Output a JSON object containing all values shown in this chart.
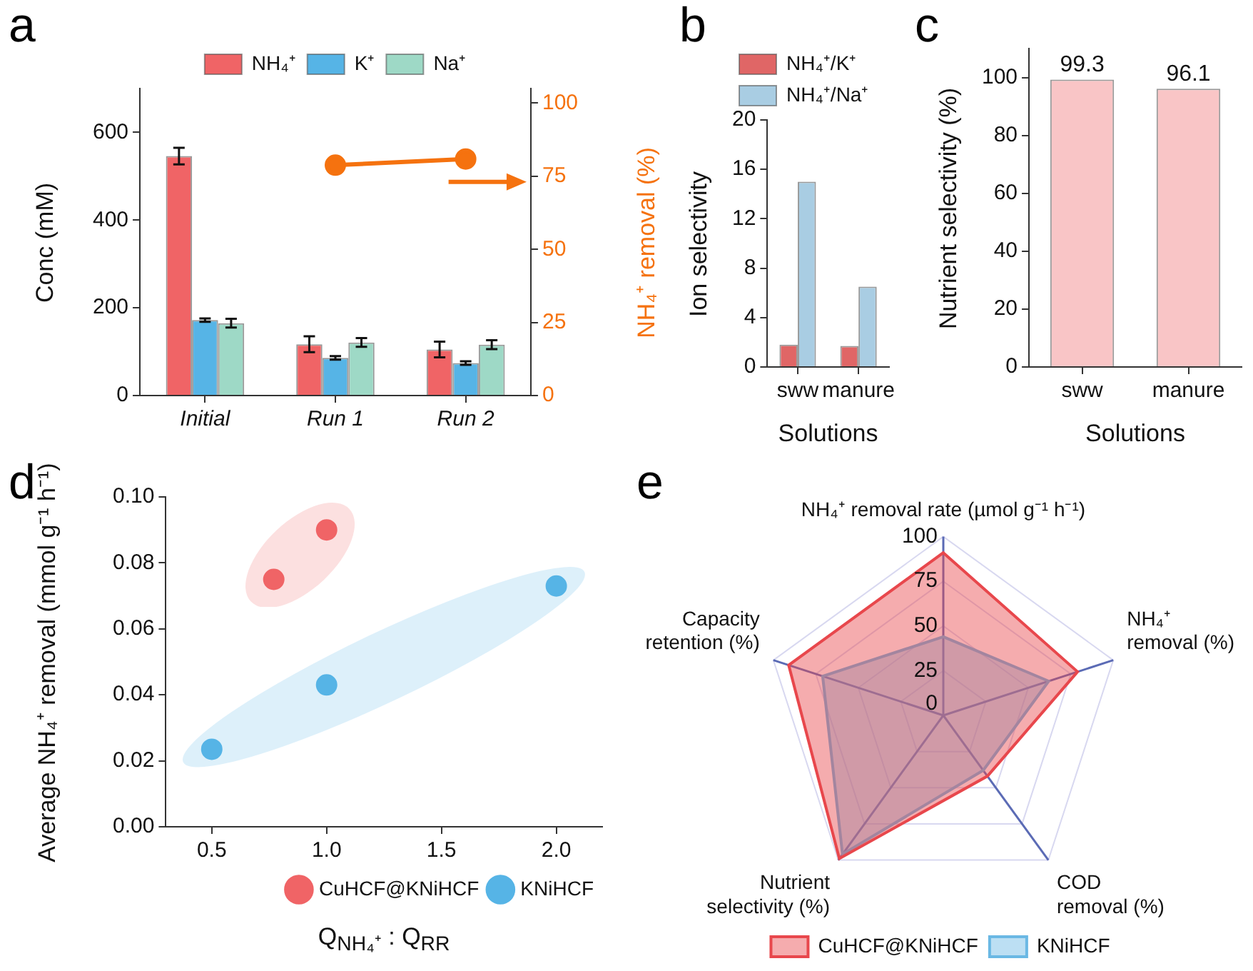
{
  "chart_data": [
    {
      "type": "bar",
      "annotations": [
        "a"
      ],
      "ylabel": "Conc (mM)",
      "y2label": "NH₄⁺ removal (%)",
      "categories": [
        "Initial",
        "Run 1",
        "Run 2"
      ],
      "series": [
        {
          "name": "NH₄⁺",
          "color": "#f06466",
          "values": [
            546,
            117,
            105
          ],
          "errors": [
            19,
            18,
            18
          ]
        },
        {
          "name": "K⁺",
          "color": "#56b4e6",
          "values": [
            172,
            86,
            74
          ],
          "errors": [
            4,
            4,
            4
          ]
        },
        {
          "name": "Na⁺",
          "color": "#9ed9c6",
          "values": [
            165,
            121,
            116
          ],
          "errors": [
            10,
            10,
            10
          ]
        },
        {
          "type": "line",
          "axis": "y2",
          "color": "#f5720f",
          "values": [
            null,
            78.8,
            80.9
          ]
        }
      ],
      "ylim": [
        0,
        700
      ],
      "yticks": [
        0,
        200,
        400,
        600
      ],
      "y2lim": [
        0,
        105
      ],
      "y2ticks": [
        0,
        25,
        50,
        75,
        100
      ],
      "legend": "top",
      "marker": "circle",
      "grid": false
    },
    {
      "type": "bar",
      "annotations": [
        "b"
      ],
      "ylabel": "Ion selectivity",
      "xlabel": "Solutions",
      "categories": [
        "sww",
        "manure"
      ],
      "series": [
        {
          "name": "NH₄⁺/K⁺",
          "color": "#e06666",
          "values": [
            1.8,
            1.7
          ]
        },
        {
          "name": "NH₄⁺/Na⁺",
          "color": "#a9cde3",
          "values": [
            15.0,
            6.5
          ]
        }
      ],
      "ylim": [
        0,
        20
      ],
      "yticks": [
        0,
        4,
        8,
        12,
        16,
        20
      ],
      "legend": "top left",
      "grid": false
    },
    {
      "type": "bar",
      "annotations": [
        "c"
      ],
      "ylabel": "Nutrient selectivity (%)",
      "xlabel": "Solutions",
      "categories": [
        "sww",
        "manure"
      ],
      "values": [
        99.3,
        96.1
      ],
      "color": "#f9c5c6",
      "data_labels": true,
      "ylim": [
        0,
        110
      ],
      "yticks": [
        0,
        20,
        40,
        60,
        80,
        100
      ],
      "grid": false
    },
    {
      "type": "scatter",
      "annotations": [
        "d"
      ],
      "xlabel": "Q$_{NH₄⁺}$ : Q$_{RR}$",
      "ylabel": "Average NH₄⁺ removal (mmol g⁻¹ h⁻¹)",
      "series": [
        {
          "name": "CuHCF@KNiHCF",
          "color": "#f06466",
          "x": [
            0.77,
            1.0
          ],
          "values": [
            0.075,
            0.09
          ]
        },
        {
          "name": "KNiHCF",
          "color": "#56b4e6",
          "x": [
            0.5,
            1.0,
            2.0
          ],
          "values": [
            0.0235,
            0.043,
            0.073
          ]
        }
      ],
      "xlim": [
        0.3,
        2.2
      ],
      "xticks": [
        0.5,
        {
          "value": 1,
          "label": "1.0"
        },
        1.5,
        {
          "value": 2,
          "label": "2.0"
        }
      ],
      "ylim": [
        0,
        0.1
      ],
      "yticks": [
        {
          "value": 0,
          "label": "0.00"
        },
        0.02,
        0.04,
        0.06,
        0.08,
        {
          "value": 0.1,
          "label": "0.10"
        }
      ],
      "legend": "bottom right",
      "marker": "circle",
      "grid": false
    },
    {
      "type": "radar",
      "annotations": [
        "e"
      ],
      "categories": [
        "NH₄⁺ removal rate (µmol g⁻¹ h⁻¹)",
        "NH₄⁺ removal (%)",
        "COD removal (%)",
        "Nutrient selectivity (%)",
        "Capacity retention (%)"
      ],
      "series": [
        {
          "name": "CuHCF@KNiHCF",
          "color": "#e8474c",
          "values": [
            91,
            79,
            42,
            99,
            91
          ]
        },
        {
          "name": "KNiHCF",
          "color": "#6ab8e4",
          "values": [
            44,
            62,
            38,
            96,
            71
          ]
        }
      ],
      "ylim": [
        0,
        100
      ],
      "yticks": [
        0,
        25,
        50,
        75,
        100
      ],
      "legend": "bottom",
      "grid": true
    }
  ]
}
